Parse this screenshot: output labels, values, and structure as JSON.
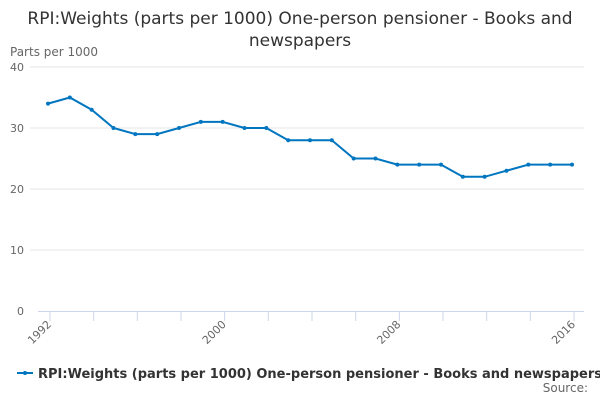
{
  "chart_data": {
    "type": "line",
    "title": "RPI:Weights (parts per 1000) One-person pensioner - Books and newspapers",
    "ylabel": "Parts per 1000",
    "xlabel": "",
    "ylim": [
      0,
      40
    ],
    "yticks": [
      0,
      10,
      20,
      30,
      40
    ],
    "xticks": [
      1992,
      2000,
      2008,
      2016
    ],
    "grid": true,
    "legend": "bottom",
    "color": "#0076c0",
    "series": [
      {
        "name": "RPI:Weights (parts per 1000) One-person pensioner - Books and newspapers",
        "x": [
          1992,
          1993,
          1994,
          1995,
          1996,
          1997,
          1998,
          1999,
          2000,
          2001,
          2002,
          2003,
          2004,
          2005,
          2006,
          2007,
          2008,
          2009,
          2010,
          2011,
          2012,
          2013,
          2014,
          2015,
          2016
        ],
        "values": [
          34,
          35,
          33,
          30,
          29,
          29,
          30,
          31,
          31,
          30,
          30,
          28,
          28,
          28,
          25,
          25,
          24,
          24,
          24,
          22,
          22,
          23,
          24,
          24,
          24
        ]
      }
    ],
    "source_label": "Source:"
  }
}
